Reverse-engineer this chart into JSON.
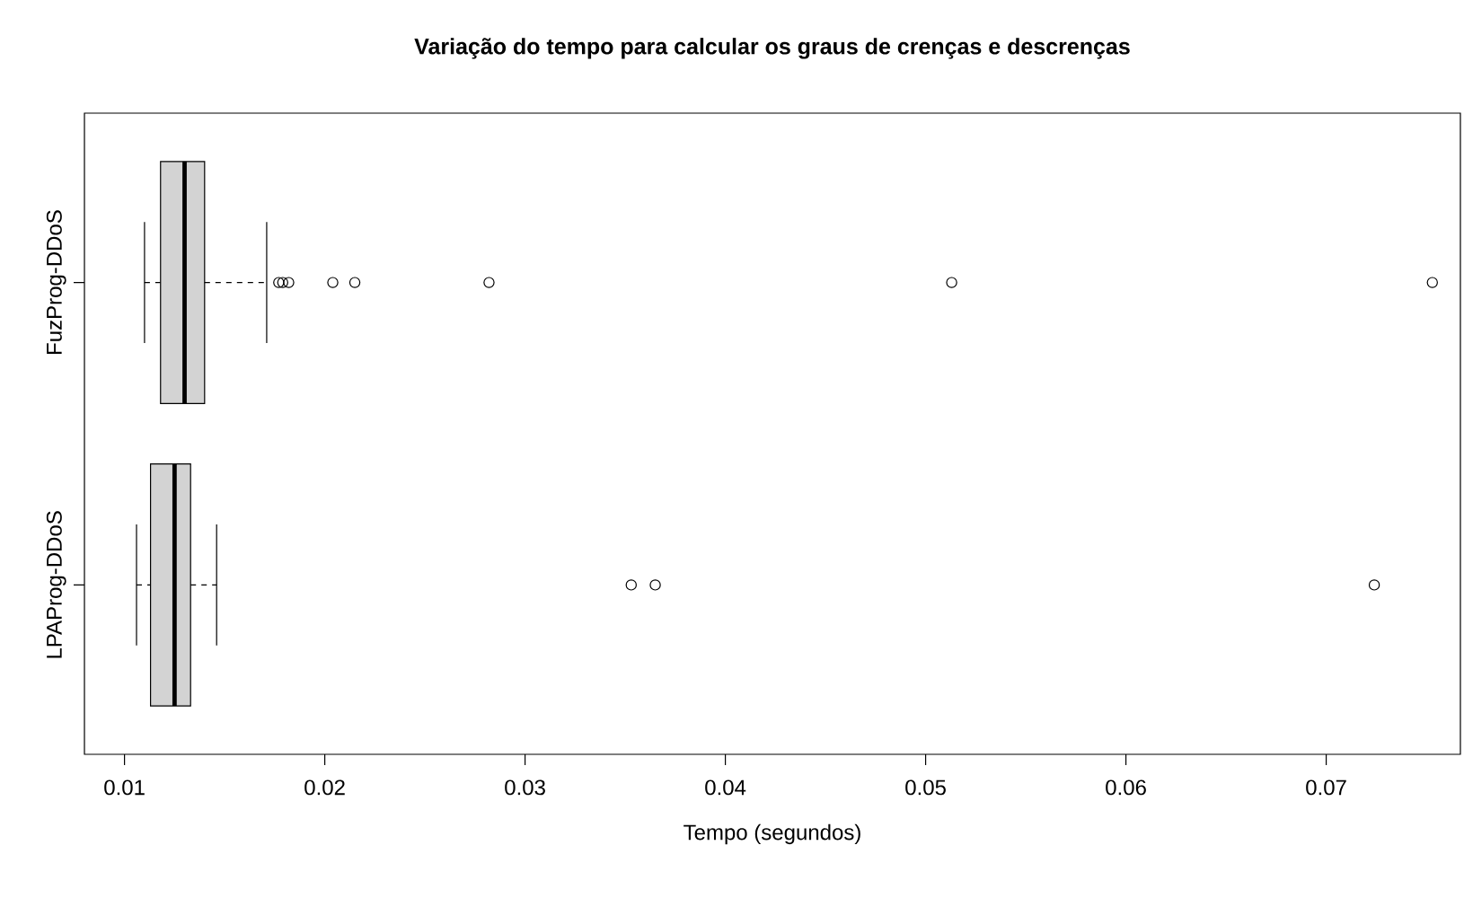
{
  "chart_data": {
    "type": "box",
    "orientation": "horizontal",
    "title": "Variação do tempo para calcular os graus de crenças e descrenças",
    "xlabel": "Tempo (segundos)",
    "categories": [
      "FuzProg-DDoS",
      "LPAProg-DDoS"
    ],
    "color": "#d3d3d3",
    "boxes": [
      {
        "low": 0.011,
        "q1": 0.0118,
        "median": 0.013,
        "q3": 0.014,
        "high": 0.0171,
        "outliers": [
          0.0177,
          0.0179,
          0.0182,
          0.0204,
          0.0215,
          0.0282,
          0.0513,
          0.0753
        ]
      },
      {
        "low": 0.0106,
        "q1": 0.0113,
        "median": 0.0125,
        "q3": 0.0133,
        "high": 0.0146,
        "outliers": [
          0.0353,
          0.0365,
          0.0724
        ]
      }
    ],
    "xlim": [
      0.008,
      0.0767
    ],
    "xticks": [
      0.01,
      0.02,
      0.03,
      0.04,
      0.05,
      0.06,
      0.07
    ]
  }
}
